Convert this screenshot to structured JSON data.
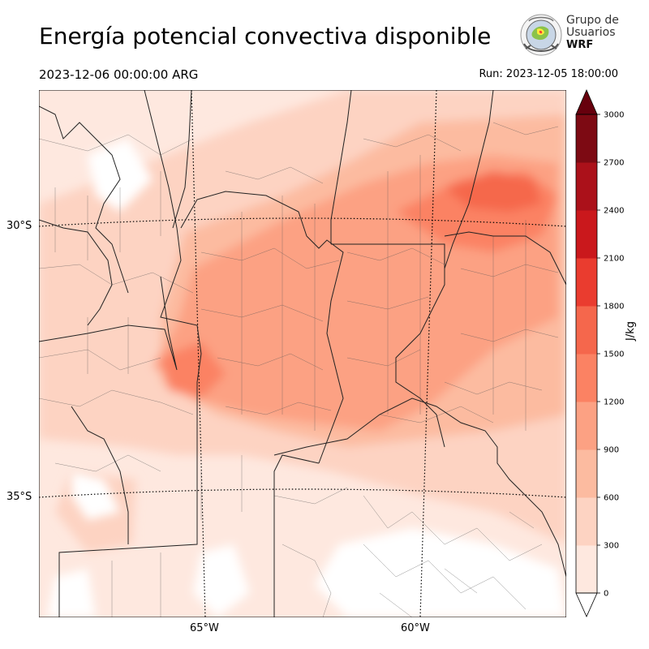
{
  "header": {
    "title": "Energía potencial convectiva disponible",
    "valid_time": "2023-12-06 00:00:00 ARG",
    "run_time": "Run: 2023-12-05 18:00:00"
  },
  "logo": {
    "line1": "Grupo de",
    "line2": "Usuarios",
    "line3": "WRF"
  },
  "map": {
    "lat_labels": [
      "30°S",
      "35°S"
    ],
    "lon_labels": [
      "65°W",
      "60°W"
    ],
    "field": "CAPE"
  },
  "colorbar": {
    "unit": "J/kg",
    "ticks": [
      "0",
      "300",
      "600",
      "900",
      "1200",
      "1500",
      "1800",
      "2100",
      "2400",
      "2700",
      "3000"
    ],
    "colors": [
      "#fee8df",
      "#fdd3c2",
      "#fcbba0",
      "#fca183",
      "#fb8263",
      "#f5674c",
      "#ea3c2f",
      "#ca181c",
      "#ab111a",
      "#7d0a13"
    ],
    "over_color": "#67000d",
    "under_color": "#ffffff"
  }
}
